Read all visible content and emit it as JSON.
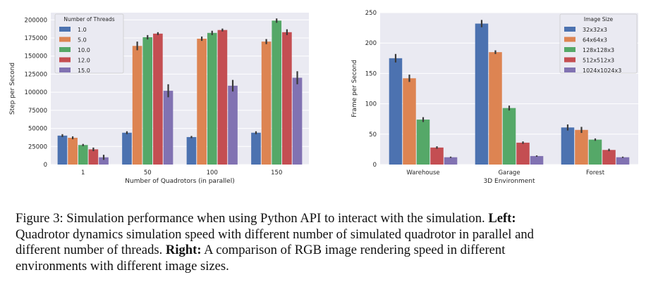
{
  "caption": {
    "line1_a": "Figure 3: Simulation performance when using Python API to interact with the simulation.",
    "line1_bold": "Left:",
    "line2": "Quadrotor dynamics simulation speed with different number of simulated quadrotor in parallel and",
    "line3_a": "different number of threads.",
    "line3_bold": "Right:",
    "line3_b": "A comparison of RGB image rendering speed in different",
    "line4": "environments with different image sizes."
  },
  "chart_data": [
    {
      "type": "bar",
      "title": "",
      "xlabel": "Number of Quadrotors (in parallel)",
      "ylabel": "Step per Second",
      "ylim": [
        0,
        210000
      ],
      "yticks": [
        0,
        25000,
        50000,
        75000,
        100000,
        125000,
        150000,
        175000,
        200000
      ],
      "grid": true,
      "legend_title": "Number of Threads",
      "legend_position": "top-left",
      "categories": [
        "1",
        "50",
        "100",
        "150"
      ],
      "series": [
        {
          "name": "1.0",
          "color": "#4c72b0",
          "values": [
            40000,
            44000,
            38000,
            44000
          ],
          "errors": [
            2000,
            2000,
            1500,
            2000
          ]
        },
        {
          "name": "5.0",
          "color": "#dd8452",
          "values": [
            37000,
            164000,
            174000,
            170000
          ],
          "errors": [
            2000,
            6000,
            3000,
            3500
          ]
        },
        {
          "name": "10.0",
          "color": "#55a868",
          "values": [
            27000,
            176000,
            182000,
            199000
          ],
          "errors": [
            1500,
            3000,
            3000,
            3000
          ]
        },
        {
          "name": "12.0",
          "color": "#c44e52",
          "values": [
            21000,
            181000,
            186000,
            183000
          ],
          "errors": [
            2500,
            2000,
            2000,
            4000
          ]
        },
        {
          "name": "15.0",
          "color": "#8172b2",
          "values": [
            10000,
            102000,
            109000,
            120000
          ],
          "errors": [
            3500,
            9000,
            8000,
            9000
          ]
        }
      ]
    },
    {
      "type": "bar",
      "title": "",
      "xlabel": "3D Environment",
      "ylabel": "Frame per Second",
      "ylim": [
        0,
        250
      ],
      "yticks": [
        0,
        50,
        100,
        150,
        200,
        250
      ],
      "grid": true,
      "legend_title": "Image Size",
      "legend_position": "top-right",
      "categories": [
        "Warehouse",
        "Garage",
        "Forest"
      ],
      "series": [
        {
          "name": "32x32x3",
          "color": "#4c72b0",
          "values": [
            175,
            232,
            61
          ],
          "errors": [
            7,
            6,
            5
          ]
        },
        {
          "name": "64x64x3",
          "color": "#dd8452",
          "values": [
            142,
            185,
            57
          ],
          "errors": [
            6,
            3,
            5
          ]
        },
        {
          "name": "128x128x3",
          "color": "#55a868",
          "values": [
            74,
            93,
            41
          ],
          "errors": [
            4,
            4,
            2
          ]
        },
        {
          "name": "512x512x3",
          "color": "#c44e52",
          "values": [
            28,
            36,
            24
          ],
          "errors": [
            2,
            2,
            2
          ]
        },
        {
          "name": "1024x1024x3",
          "color": "#8172b2",
          "values": [
            12,
            14,
            12
          ],
          "errors": [
            1,
            1,
            1
          ]
        }
      ]
    }
  ]
}
